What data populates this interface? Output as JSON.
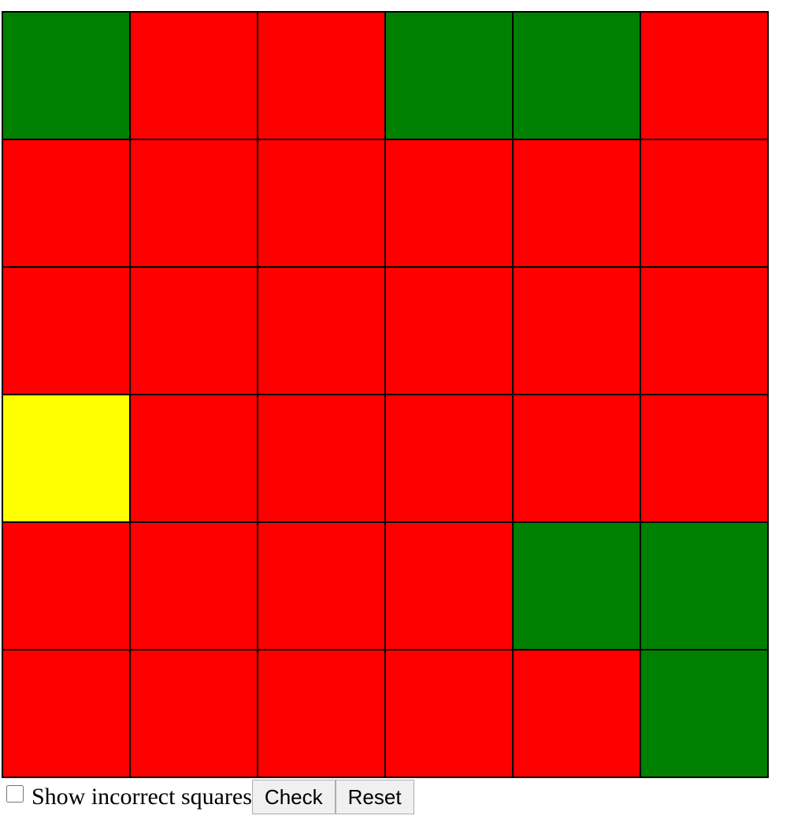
{
  "colors": {
    "G": "#008000",
    "R": "#ff0000",
    "Y": "#ffff00"
  },
  "board": {
    "rows": [
      [
        "G",
        "R",
        "R",
        "G",
        "G",
        "R"
      ],
      [
        "R",
        "R",
        "R",
        "R",
        "R",
        "R"
      ],
      [
        "R",
        "R",
        "R",
        "R",
        "R",
        "R"
      ],
      [
        "Y",
        "R",
        "R",
        "R",
        "R",
        "R"
      ],
      [
        "R",
        "R",
        "R",
        "R",
        "G",
        "G"
      ],
      [
        "R",
        "R",
        "R",
        "R",
        "R",
        "G"
      ]
    ]
  },
  "controls": {
    "show_incorrect_label": "Show incorrect squares",
    "show_incorrect_checked": false,
    "check_label": "Check",
    "reset_label": "Reset"
  }
}
